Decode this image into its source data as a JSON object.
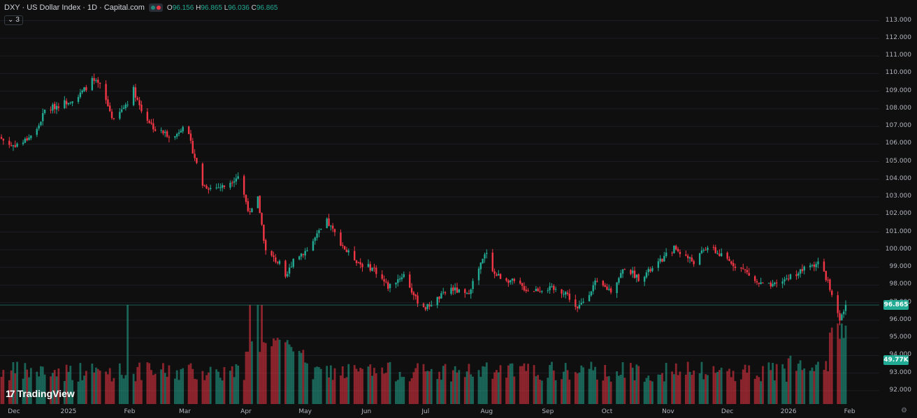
{
  "header": {
    "symbol_title": "DXY · US Dollar Index · 1D · Capital.com",
    "ohlc": {
      "open_key": "O",
      "open": "96.156",
      "high_key": "H",
      "high": "96.865",
      "low_key": "L",
      "low": "96.036",
      "close_key": "C",
      "close": "96.865"
    },
    "indicator_count": "3",
    "chevron": "⌄"
  },
  "branding": {
    "logo_mark": "17",
    "logo_text": "TradingView"
  },
  "icons": {
    "settings": "settings-gear-icon",
    "chevron": "chevron-down-icon"
  },
  "colors": {
    "up": "#22ab94",
    "down": "#f23645",
    "background": "#0f0f0f",
    "grid": "#1d1f24",
    "price_line": "#22ab94"
  },
  "chart_data": {
    "type": "candlestick",
    "timeframe": "1D",
    "price_axis": {
      "ticks": [
        "113.000",
        "112.000",
        "111.000",
        "110.000",
        "109.000",
        "108.000",
        "107.000",
        "106.000",
        "105.000",
        "104.000",
        "103.000",
        "102.000",
        "101.000",
        "100.000",
        "99.000",
        "98.000",
        "97.000",
        "96.000",
        "95.000",
        "94.000",
        "93.000",
        "92.000"
      ],
      "range": [
        91.6,
        113.3
      ]
    },
    "time_axis": {
      "ticks": [
        "Dec",
        "2025",
        "Feb",
        "Mar",
        "Apr",
        "May",
        "Jun",
        "Jul",
        "Aug",
        "Sep",
        "Oct",
        "Nov",
        "Dec",
        "2026",
        "Feb"
      ]
    },
    "last_price": "96.865",
    "last_volume": "49.77K",
    "series_close_keypoints": [
      [
        "Nov 28 2024",
        106.3
      ],
      [
        "Dec 03 2024",
        105.9
      ],
      [
        "Dec 09 2024",
        106.1
      ],
      [
        "Dec 16 2024",
        106.8
      ],
      [
        "Dec 20 2024",
        107.9
      ],
      [
        "Dec 31 2024",
        108.4
      ],
      [
        "Jan 06 2025",
        108.7
      ],
      [
        "Jan 13 2025",
        109.6
      ],
      [
        "Jan 17 2025",
        109.3
      ],
      [
        "Jan 24 2025",
        107.3
      ],
      [
        "Jan 31 2025",
        108.4
      ],
      [
        "Feb 03 2025",
        109.1
      ],
      [
        "Feb 07 2025",
        107.9
      ],
      [
        "Feb 14 2025",
        106.8
      ],
      [
        "Feb 24 2025",
        106.4
      ],
      [
        "Feb 28 2025",
        107.1
      ],
      [
        "Mar 03 2025",
        106.4
      ],
      [
        "Mar 10 2025",
        103.7
      ],
      [
        "Mar 14 2025",
        103.5
      ],
      [
        "Mar 21 2025",
        103.6
      ],
      [
        "Mar 28 2025",
        104.2
      ],
      [
        "Apr 03 2025",
        102.0
      ],
      [
        "Apr 07 2025",
        102.9
      ],
      [
        "Apr 11 2025",
        99.9
      ],
      [
        "Apr 18 2025",
        99.2
      ],
      [
        "Apr 21 2025",
        98.3
      ],
      [
        "Apr 25 2025",
        99.5
      ],
      [
        "May 02 2025",
        100.0
      ],
      [
        "May 12 2025",
        101.6
      ],
      [
        "May 22 2025",
        99.9
      ],
      [
        "May 29 2025",
        99.2
      ],
      [
        "Jun 05 2025",
        98.9
      ],
      [
        "Jun 12 2025",
        97.9
      ],
      [
        "Jun 20 2025",
        98.6
      ],
      [
        "Jun 26 2025",
        97.2
      ],
      [
        "Jul 01 2025",
        96.7
      ],
      [
        "Jul 14 2025",
        97.8
      ],
      [
        "Jul 22 2025",
        97.4
      ],
      [
        "Aug 01 2025",
        99.9
      ],
      [
        "Aug 05 2025",
        98.6
      ],
      [
        "Aug 14 2025",
        98.2
      ],
      [
        "Aug 22 2025",
        97.7
      ],
      [
        "Sep 01 2025",
        97.8
      ],
      [
        "Sep 10 2025",
        97.6
      ],
      [
        "Sep 16 2025",
        96.6
      ],
      [
        "Sep 25 2025",
        98.1
      ],
      [
        "Oct 03 2025",
        97.7
      ],
      [
        "Oct 10 2025",
        99.0
      ],
      [
        "Oct 17 2025",
        98.4
      ],
      [
        "Oct 24 2025",
        98.9
      ],
      [
        "Nov 04 2025",
        100.1
      ],
      [
        "Nov 14 2025",
        99.3
      ],
      [
        "Nov 21 2025",
        100.2
      ],
      [
        "Dec 01 2025",
        99.4
      ],
      [
        "Dec 10 2025",
        98.8
      ],
      [
        "Dec 16 2025",
        98.1
      ],
      [
        "Dec 24 2025",
        97.9
      ],
      [
        "Jan 02 2026",
        98.5
      ],
      [
        "Jan 09 2026",
        98.9
      ],
      [
        "Jan 16 2026",
        99.3
      ],
      [
        "Jan 21 2026",
        98.2
      ],
      [
        "Jan 23 2026",
        97.3
      ],
      [
        "Jan 27 2026",
        95.9
      ],
      [
        "Jan 28 2026",
        96.2
      ],
      [
        "Jan 30 2026",
        96.865
      ]
    ],
    "volume_note_level_shown_by_bars": "relative",
    "volume_spike_dates": [
      "Jan 31 2025",
      "Apr 03 2025",
      "Apr 07 2025",
      "Apr 09 2025"
    ]
  }
}
